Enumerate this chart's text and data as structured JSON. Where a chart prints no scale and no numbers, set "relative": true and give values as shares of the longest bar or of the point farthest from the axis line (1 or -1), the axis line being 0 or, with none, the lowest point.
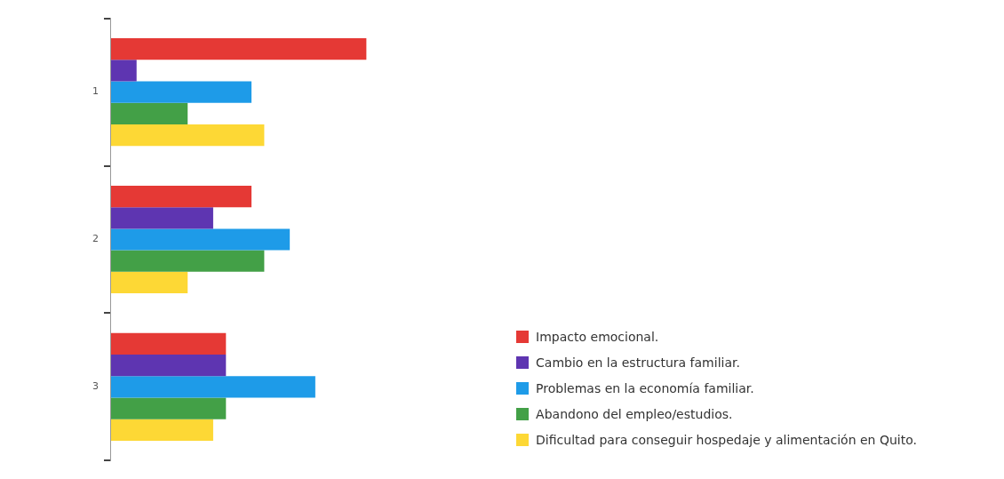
{
  "chart_data": {
    "type": "bar",
    "orientation": "horizontal",
    "relative": true,
    "categories": [
      "1",
      "2",
      "3"
    ],
    "series": [
      {
        "name": "Impacto emocional.",
        "color": "#e53935",
        "values": [
          1,
          0.55,
          0.45
        ]
      },
      {
        "name": "Cambio en la estructura familiar.",
        "color": "#5e35b1",
        "values": [
          0.1,
          0.4,
          0.45
        ]
      },
      {
        "name": "Problemas en la economía familiar.",
        "color": "#1e9be8",
        "values": [
          0.55,
          0.7,
          0.8
        ]
      },
      {
        "name": "Abandono del empleo/estudios.",
        "color": "#43a047",
        "values": [
          0.3,
          0.6,
          0.45
        ]
      },
      {
        "name": "Dificultad para conseguir hospedaje y alimentación en Quito.",
        "color": "#fdd835",
        "values": [
          0.6,
          0.3,
          0.4
        ]
      }
    ],
    "legend": "bottom right"
  }
}
